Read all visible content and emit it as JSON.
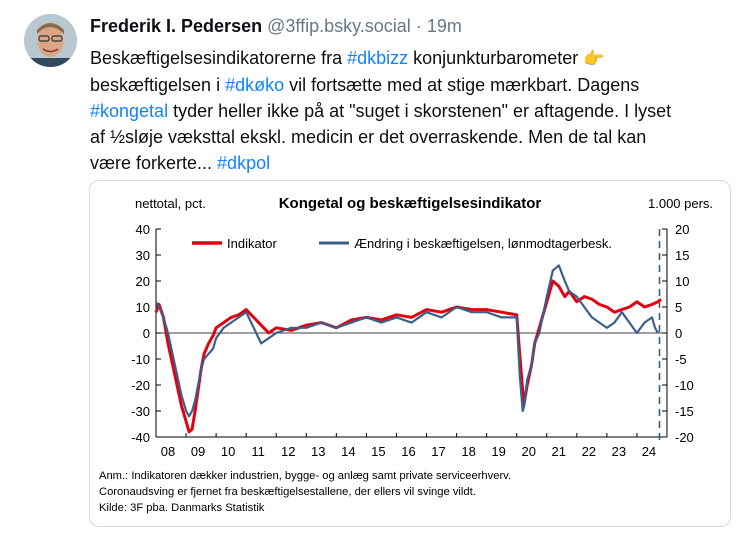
{
  "post": {
    "author_name": "Frederik I. Pedersen",
    "handle": "@3ffip.bsky.social",
    "separator": "·",
    "timestamp": "19m",
    "text_segments": [
      {
        "t": "Beskæftigelsesindikatorerne fra "
      },
      {
        "t": "#dkbizz",
        "tag": true
      },
      {
        "t": " konjunkturbarometer "
      },
      {
        "t": "👉",
        "emoji": true
      },
      {
        "br": true
      },
      {
        "t": "beskæftigelsen i "
      },
      {
        "t": "#dkøko",
        "tag": true
      },
      {
        "t": " vil fortsætte med at stige mærkbart. Dagens"
      },
      {
        "br": true
      },
      {
        "t": "#kongetal",
        "tag": true
      },
      {
        "t": " tyder heller ikke på at \"suget i skorstenen\" er aftagende. I lyset"
      },
      {
        "br": true
      },
      {
        "t": "af ½sløje væksttal ekskl. medicin er det overraskende. Men de tal kan"
      },
      {
        "br": true
      },
      {
        "t": "være forkerte... "
      },
      {
        "t": "#dkpol",
        "tag": true
      }
    ]
  },
  "colors": {
    "hashtag": "#1083fe",
    "indikator": "#e3000f",
    "aendring": "#3b5f8a",
    "muted": "#66788a"
  },
  "chart_data": {
    "type": "line",
    "title": "Kongetal og beskæftigelsesindikator",
    "left_axis_label": "nettotal, pct.",
    "right_axis_label": "1.000 pers.",
    "left_ticks": [
      40,
      30,
      20,
      10,
      0,
      -10,
      -20,
      -30,
      -40
    ],
    "right_ticks": [
      20,
      15,
      10,
      5,
      0,
      -5,
      -10,
      -15,
      -20
    ],
    "x_ticks": [
      "08",
      "09",
      "10",
      "11",
      "12",
      "13",
      "14",
      "15",
      "16",
      "17",
      "18",
      "19",
      "20",
      "21",
      "22",
      "23",
      "24"
    ],
    "ylim_left": [
      -40,
      40
    ],
    "ylim_right": [
      -20,
      20
    ],
    "xlim": [
      2008.0,
      2025.0
    ],
    "legend": "top",
    "grid": false,
    "forecast_marker_x": 2024.75,
    "series": [
      {
        "name": "Indikator",
        "axis": "left",
        "color": "#e3000f",
        "x": [
          2008.0,
          2008.1,
          2008.25,
          2008.4,
          2008.55,
          2008.7,
          2008.85,
          2009.0,
          2009.1,
          2009.2,
          2009.3,
          2009.4,
          2009.5,
          2009.6,
          2009.75,
          2009.9,
          2010.0,
          2010.25,
          2010.5,
          2010.75,
          2011.0,
          2011.25,
          2011.5,
          2011.75,
          2012.0,
          2012.5,
          2013.0,
          2013.5,
          2014.0,
          2014.5,
          2015.0,
          2015.5,
          2016.0,
          2016.5,
          2017.0,
          2017.5,
          2018.0,
          2018.5,
          2019.0,
          2019.5,
          2020.0,
          2020.1,
          2020.2,
          2020.25,
          2020.35,
          2020.5,
          2020.6,
          2020.75,
          2021.0,
          2021.2,
          2021.4,
          2021.6,
          2021.75,
          2022.0,
          2022.25,
          2022.5,
          2022.75,
          2023.0,
          2023.25,
          2023.5,
          2023.75,
          2024.0,
          2024.25,
          2024.5,
          2024.7,
          2024.8
        ],
        "y": [
          8,
          11,
          6,
          -4,
          -12,
          -20,
          -28,
          -34,
          -38,
          -37,
          -30,
          -22,
          -14,
          -8,
          -4,
          -1,
          2,
          4,
          6,
          7,
          9,
          6,
          3,
          0,
          2,
          1,
          3,
          4,
          2,
          5,
          6,
          5,
          7,
          6,
          9,
          8,
          10,
          9,
          9,
          8,
          7,
          -8,
          -22,
          -27,
          -20,
          -12,
          -4,
          2,
          12,
          20,
          18,
          14,
          16,
          12,
          14,
          13,
          11,
          10,
          8,
          9,
          10,
          12,
          10,
          11,
          12,
          13
        ]
      },
      {
        "name": "Ændring i beskæftigelsen, lønmodtagerbesk.",
        "axis": "right",
        "color": "#3b5f8a",
        "x": [
          2008.0,
          2008.1,
          2008.25,
          2008.4,
          2008.55,
          2008.7,
          2008.85,
          2009.0,
          2009.1,
          2009.2,
          2009.3,
          2009.4,
          2009.5,
          2009.6,
          2009.75,
          2009.9,
          2010.0,
          2010.25,
          2010.5,
          2010.75,
          2011.0,
          2011.25,
          2011.5,
          2011.75,
          2012.0,
          2012.5,
          2013.0,
          2013.5,
          2014.0,
          2014.5,
          2015.0,
          2015.5,
          2016.0,
          2016.5,
          2017.0,
          2017.5,
          2018.0,
          2018.5,
          2019.0,
          2019.5,
          2020.0,
          2020.1,
          2020.2,
          2020.25,
          2020.35,
          2020.5,
          2020.6,
          2020.75,
          2021.0,
          2021.2,
          2021.4,
          2021.6,
          2021.75,
          2022.0,
          2022.25,
          2022.5,
          2022.75,
          2023.0,
          2023.25,
          2023.5,
          2023.75,
          2024.0,
          2024.25,
          2024.5,
          2024.6,
          2024.7
        ],
        "y": [
          6,
          5,
          3,
          0,
          -4,
          -8,
          -12,
          -15,
          -16,
          -15,
          -13,
          -10,
          -7,
          -5,
          -4,
          -3,
          -1,
          1,
          2,
          3,
          4,
          1,
          -2,
          -1,
          0,
          1,
          1,
          2,
          1,
          2,
          3,
          2,
          3,
          2,
          4,
          3,
          5,
          4,
          4,
          3,
          3,
          -8,
          -15,
          -14,
          -9,
          -6,
          -2,
          0,
          7,
          12,
          13,
          10,
          8,
          7,
          5,
          3,
          2,
          1,
          2,
          4,
          2,
          0,
          2,
          3,
          1,
          0
        ]
      }
    ]
  },
  "notes": [
    "Anm.: Indikatoren dækker industrien, bygge- og anlæg samt private serviceerhverv.",
    "Coronaudsving er fjernet fra beskæftigelsestallene, der ellers vil svinge vildt.",
    "Kilde: 3F pba. Danmarks Statistik"
  ]
}
